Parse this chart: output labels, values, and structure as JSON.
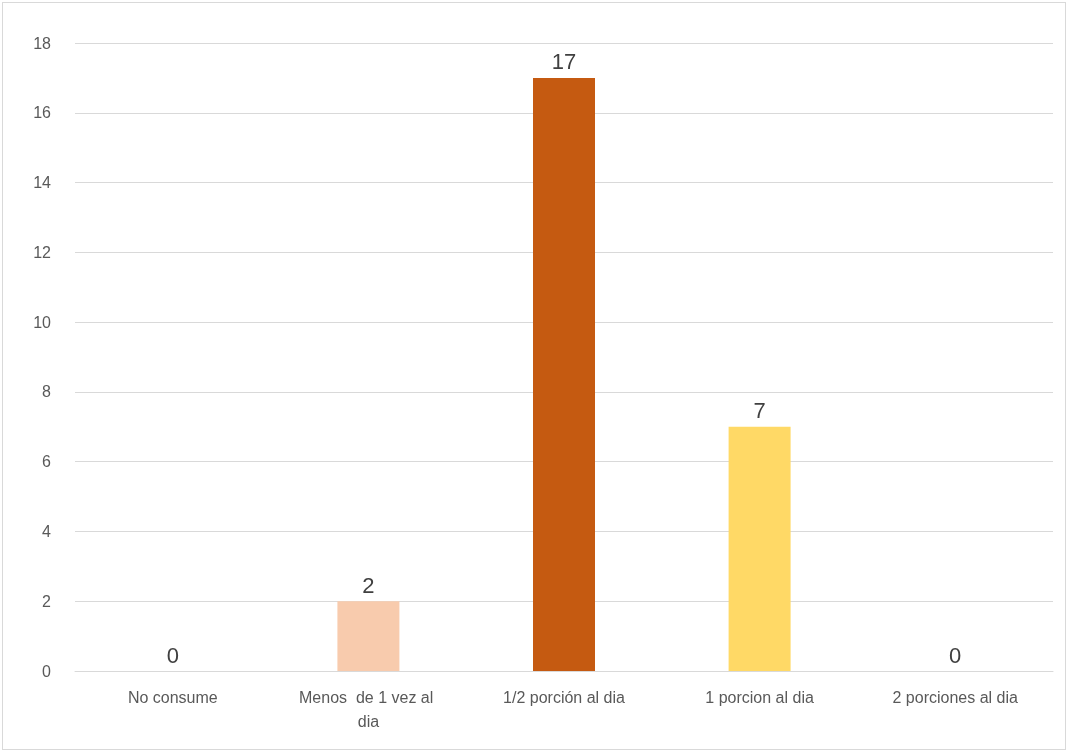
{
  "chart_data": {
    "type": "bar",
    "categories": [
      "No consume",
      "Menos  de 1 vez al dia",
      "1/2 porción al dia",
      "1 porcion al dia",
      "2 porciones al dia"
    ],
    "values": [
      0,
      2,
      17,
      7,
      0
    ],
    "colors": [
      "#f4b183",
      "#f8cbad",
      "#c55a11",
      "#ffd966",
      "#843c0c"
    ],
    "ylim": [
      0,
      18
    ],
    "yticks": [
      0,
      2,
      4,
      6,
      8,
      10,
      12,
      14,
      16,
      18
    ],
    "grid": "y",
    "data_labels": true
  }
}
